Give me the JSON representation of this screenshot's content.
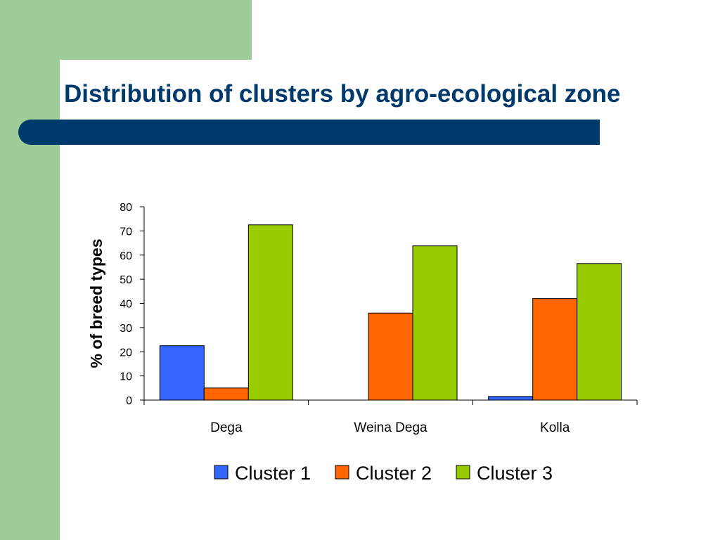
{
  "slide": {
    "title": "Distribution of clusters by agro-ecological zone",
    "colors": {
      "accent_green": "#9dcd98",
      "title_navy": "#003a6c",
      "bar_navy": "#003a6c"
    }
  },
  "chart_data": {
    "type": "bar",
    "title": "",
    "xlabel": "",
    "ylabel": "% of breed types",
    "categories": [
      "Dega",
      "Weina Dega",
      "Kolla"
    ],
    "series": [
      {
        "name": "Cluster 1",
        "color": "#3366ff",
        "values": [
          22.5,
          0,
          1.5
        ]
      },
      {
        "name": "Cluster 2",
        "color": "#ff6600",
        "values": [
          5,
          36,
          42
        ]
      },
      {
        "name": "Cluster 3",
        "color": "#99cc00",
        "values": [
          72.5,
          63.8,
          56.5
        ]
      }
    ],
    "ylim": [
      0,
      80
    ],
    "yticks": [
      0,
      10,
      20,
      30,
      40,
      50,
      60,
      70,
      80
    ],
    "grid": false,
    "legend_position": "bottom"
  }
}
